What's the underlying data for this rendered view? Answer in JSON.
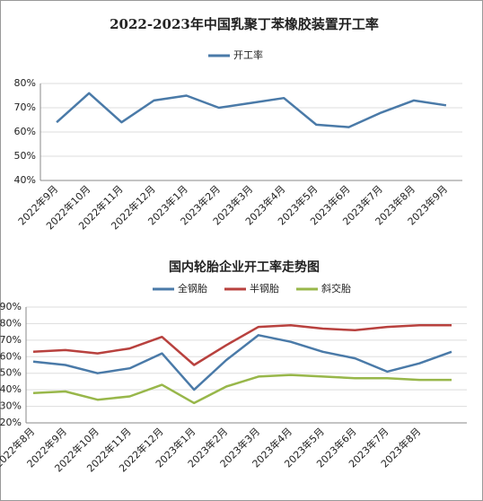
{
  "chart_data": [
    {
      "type": "line",
      "title": "2022-2023年中国乳聚丁苯橡胶装置开工率",
      "categories": [
        "2022年9月",
        "2022年10月",
        "2022年11月",
        "2022年12月",
        "2023年1月",
        "2023年2月",
        "2023年3月",
        "2023年4月",
        "2023年5月",
        "2023年6月",
        "2023年7月",
        "2023年8月",
        "2023年9月"
      ],
      "series": [
        {
          "name": "开工率",
          "color": "#4a7aa8",
          "values": [
            64,
            76,
            64,
            73,
            75,
            70,
            72,
            74,
            63,
            62,
            68,
            73,
            71
          ]
        }
      ],
      "ylim": [
        40,
        80
      ],
      "yticks": [
        {
          "value": 40,
          "label": "40%"
        },
        {
          "value": 50,
          "label": "50%"
        },
        {
          "value": 60,
          "label": "60%"
        },
        {
          "value": 70,
          "label": "70%"
        },
        {
          "value": 80,
          "label": "80%"
        }
      ],
      "grid": true,
      "legend": "top"
    },
    {
      "type": "line",
      "title": "国内轮胎企业开工率走势图",
      "categories": [
        "2022年8月",
        "2022年9月",
        "2022年10月",
        "2022年11月",
        "2022年12月",
        "2023年1月",
        "2023年2月",
        "2023年3月",
        "2023年4月",
        "2023年5月",
        "2023年6月",
        "2023年7月",
        "2023年8月",
        null
      ],
      "series": [
        {
          "name": "全钢胎",
          "color": "#4a7aa8",
          "values": [
            57,
            55,
            50,
            53,
            62,
            40,
            58,
            73,
            69,
            63,
            59,
            51,
            56,
            63
          ]
        },
        {
          "name": "半钢胎",
          "color": "#b8413e",
          "values": [
            63,
            64,
            62,
            65,
            72,
            55,
            67,
            78,
            79,
            77,
            76,
            78,
            79,
            79
          ]
        },
        {
          "name": "斜交胎",
          "color": "#98b74a",
          "values": [
            38,
            39,
            34,
            36,
            43,
            32,
            42,
            48,
            49,
            48,
            47,
            47,
            46,
            46
          ]
        }
      ],
      "ylim": [
        20,
        90
      ],
      "yticks": [
        {
          "value": 20,
          "label": "20%"
        },
        {
          "value": 30,
          "label": "30%"
        },
        {
          "value": 40,
          "label": "40%"
        },
        {
          "value": 50,
          "label": "50%"
        },
        {
          "value": 60,
          "label": "60%"
        },
        {
          "value": 70,
          "label": "70%"
        },
        {
          "value": 80,
          "label": "80%"
        },
        {
          "value": 90,
          "label": "90%"
        }
      ],
      "grid": true,
      "legend": "top"
    }
  ]
}
